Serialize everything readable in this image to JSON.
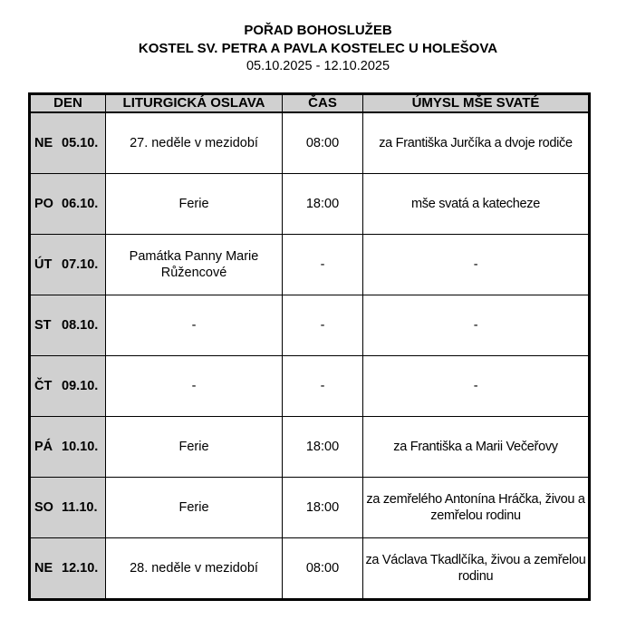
{
  "header": {
    "title": "POŘAD BOHOSLUŽEB",
    "church": "KOSTEL SV. PETRA A PAVLA KOSTELEC U HOLEŠOVA",
    "date_range": "05.10.2025 - 12.10.2025"
  },
  "table": {
    "columns": [
      "DEN",
      "LITURGICKÁ OSLAVA",
      "ČAS",
      "ÚMYSL MŠE SVATÉ"
    ],
    "rows": [
      {
        "dow": "NE",
        "date": "05.10.",
        "celebration": "27. neděle v mezidobí",
        "time": "08:00",
        "intention": "za Františka Jurčíka a dvoje rodiče"
      },
      {
        "dow": "PO",
        "date": "06.10.",
        "celebration": "Ferie",
        "time": "18:00",
        "intention": "mše svatá a katecheze"
      },
      {
        "dow": "ÚT",
        "date": "07.10.",
        "celebration": "Památka Panny Marie Růžencové",
        "time": "-",
        "intention": "-"
      },
      {
        "dow": "ST",
        "date": "08.10.",
        "celebration": "-",
        "time": "-",
        "intention": "-"
      },
      {
        "dow": "ČT",
        "date": "09.10.",
        "celebration": "-",
        "time": "-",
        "intention": "-"
      },
      {
        "dow": "PÁ",
        "date": "10.10.",
        "celebration": "Ferie",
        "time": "18:00",
        "intention": "za Františka a Marii Večeřovy"
      },
      {
        "dow": "SO",
        "date": "11.10.",
        "celebration": "Ferie",
        "time": "18:00",
        "intention": "za zemřelého Antonína Hráčka, živou a zemřelou rodinu"
      },
      {
        "dow": "NE",
        "date": "12.10.",
        "celebration": "28. neděle v mezidobí",
        "time": "08:00",
        "intention": "za Václava Tkadlčíka, živou a zemřelou rodinu"
      }
    ]
  }
}
